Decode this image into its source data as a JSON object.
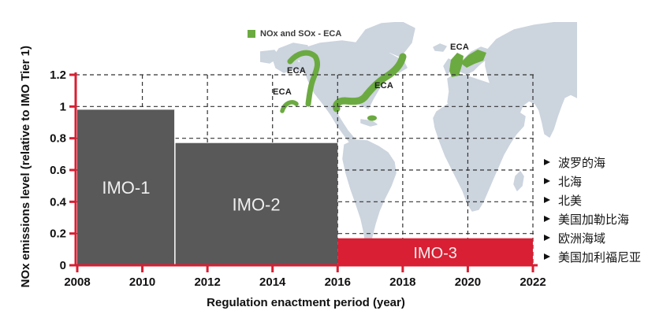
{
  "legend": {
    "label": "NOx and SOx - ECA",
    "color": "#6baa40"
  },
  "map": {
    "land_color": "#ccd4de",
    "eca_color": "#6baa40",
    "eca_labels": [
      "ECA",
      "ECA",
      "ECA",
      "ECA"
    ]
  },
  "chart_data": {
    "type": "bar",
    "title": "",
    "xlabel": "Regulation enactment period (year)",
    "ylabel": "NOx emissions level (relative to IMO Tier 1)",
    "xlim": [
      2008,
      2022
    ],
    "ylim": [
      0,
      1.2
    ],
    "x_ticks": [
      2008,
      2010,
      2012,
      2014,
      2016,
      2018,
      2020,
      2022
    ],
    "y_ticks": [
      0,
      0.2,
      0.4,
      0.6,
      0.8,
      1,
      1.2
    ],
    "grid": true,
    "axis_color": "#d81f33",
    "gridline_color": "#333333",
    "bar_label_color": "#efefef",
    "bars": [
      {
        "label": "IMO-1",
        "start_year": 2008,
        "end_year": 2011,
        "value": 0.98,
        "color": "#595959"
      },
      {
        "label": "IMO-2",
        "start_year": 2011,
        "end_year": 2016,
        "value": 0.77,
        "color": "#595959"
      },
      {
        "label": "IMO-3",
        "start_year": 2016,
        "end_year": 2022,
        "value": 0.17,
        "color": "#d81f33"
      }
    ]
  },
  "region_list": {
    "items": [
      "波罗的海",
      "北海",
      "北美",
      "美国加勒比海",
      "欧洲海域",
      "美国加利福尼亚"
    ]
  }
}
